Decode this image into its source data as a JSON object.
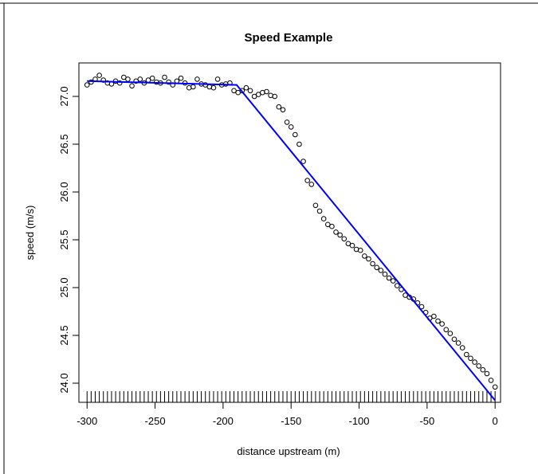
{
  "chart_data": {
    "type": "scatter",
    "title": "Speed Example",
    "xlabel": "distance upstream (m)",
    "ylabel": "speed (m/s)",
    "xlim": [
      -306,
      4
    ],
    "ylim": [
      23.8,
      27.35
    ],
    "x_ticks": [
      -300,
      -250,
      -200,
      -150,
      -100,
      -50,
      0
    ],
    "x_tick_labels": [
      "-300",
      "-250",
      "-200",
      "-150",
      "-100",
      "-50",
      "0"
    ],
    "y_ticks": [
      24.0,
      24.5,
      25.0,
      25.5,
      26.0,
      26.5,
      27.0
    ],
    "y_tick_labels": [
      "24.0",
      "24.5",
      "25.0",
      "25.5",
      "26.0",
      "26.5",
      "27.0"
    ],
    "grid": false,
    "legend": "none",
    "colors": {
      "points": "#000000",
      "fit_line": "#0000ff",
      "rug": "#000000"
    },
    "series": [
      {
        "kind": "points",
        "x": [
          -300,
          -297,
          -294,
          -291,
          -288,
          -285,
          -282,
          -279,
          -276,
          -273,
          -270,
          -267,
          -264,
          -261,
          -258,
          -255,
          -252,
          -249,
          -246,
          -243,
          -240,
          -237,
          -234,
          -231,
          -228,
          -225,
          -222,
          -219,
          -216,
          -213,
          -210,
          -207,
          -204,
          -201,
          -198,
          -195,
          -192,
          -189,
          -186,
          -183,
          -180,
          -177,
          -174,
          -171,
          -168,
          -165,
          -162,
          -159,
          -156,
          -153,
          -150,
          -147,
          -144,
          -141,
          -138,
          -135,
          -132,
          -129,
          -126,
          -123,
          -120,
          -117,
          -114,
          -111,
          -108,
          -105,
          -102,
          -99,
          -96,
          -93,
          -90,
          -87,
          -84,
          -81,
          -78,
          -75,
          -72,
          -69,
          -66,
          -63,
          -60,
          -57,
          -54,
          -51,
          -48,
          -45,
          -42,
          -39,
          -36,
          -33,
          -30,
          -27,
          -24,
          -21,
          -18,
          -15,
          -12,
          -9,
          -6,
          -3,
          0
        ],
        "y": [
          27.12,
          27.15,
          27.18,
          27.22,
          27.17,
          27.14,
          27.13,
          27.16,
          27.14,
          27.2,
          27.18,
          27.11,
          27.16,
          27.18,
          27.14,
          27.17,
          27.19,
          27.15,
          27.14,
          27.2,
          27.15,
          27.12,
          27.16,
          27.19,
          27.14,
          27.09,
          27.1,
          27.18,
          27.13,
          27.12,
          27.1,
          27.09,
          27.18,
          27.12,
          27.13,
          27.14,
          27.06,
          27.04,
          27.06,
          27.09,
          27.06,
          27.0,
          27.02,
          27.04,
          27.05,
          27.01,
          27.0,
          26.89,
          26.86,
          26.73,
          26.68,
          26.6,
          26.5,
          26.32,
          26.12,
          26.08,
          25.86,
          25.8,
          25.72,
          25.66,
          25.64,
          25.58,
          25.55,
          25.51,
          25.46,
          25.44,
          25.4,
          25.39,
          25.33,
          25.3,
          25.25,
          25.21,
          25.18,
          25.14,
          25.1,
          25.07,
          25.02,
          24.98,
          24.92,
          24.9,
          24.88,
          24.84,
          24.8,
          24.74,
          24.68,
          24.7,
          24.65,
          24.62,
          24.56,
          24.52,
          24.46,
          24.42,
          24.37,
          24.3,
          24.26,
          24.22,
          24.18,
          24.14,
          24.1,
          24.03,
          23.96
        ]
      },
      {
        "kind": "fit_line",
        "x": [
          -300,
          -190,
          0
        ],
        "y": [
          27.16,
          27.12,
          23.82
        ]
      }
    ],
    "rug_x_step": 3
  }
}
